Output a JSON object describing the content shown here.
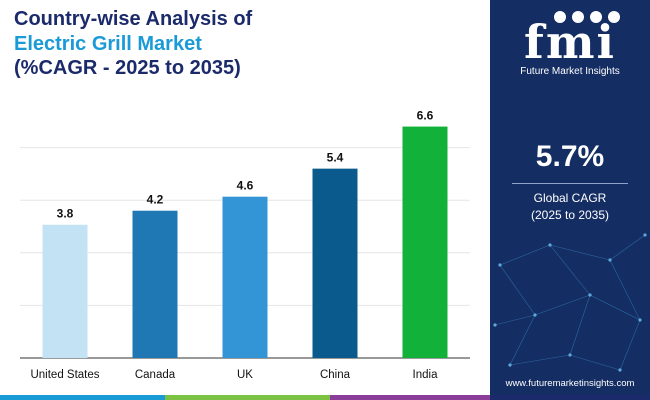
{
  "title": {
    "line1": "Country-wise Analysis of",
    "line2": "Electric Grill Market",
    "line3": "(%CAGR - 2025 to 2035)"
  },
  "chart_data": {
    "type": "bar",
    "categories": [
      "United States",
      "Canada",
      "UK",
      "China",
      "India"
    ],
    "values": [
      3.8,
      4.2,
      4.6,
      5.4,
      6.6
    ],
    "value_labels": [
      "3.8",
      "4.2",
      "4.6",
      "5.4",
      "6.6"
    ],
    "ylim": [
      0,
      7.5
    ],
    "grid": true,
    "bar_colors": [
      "#c3e2f4",
      "#1f77b4",
      "#3394d6",
      "#0a5a8e",
      "#12b23a"
    ]
  },
  "brand": {
    "logo": "fmi",
    "name": "Future Market Insights",
    "website": "www.futuremarketinsights.com",
    "panel_color": "#142d63"
  },
  "summary": {
    "cagr_value": "5.7%",
    "cagr_label_line1": "Global CAGR",
    "cagr_label_line2": "(2025 to 2035)"
  },
  "footer_colors": [
    "#1a9ad6",
    "#7cc242",
    "#8b3d9a",
    "#1b2a6b"
  ]
}
